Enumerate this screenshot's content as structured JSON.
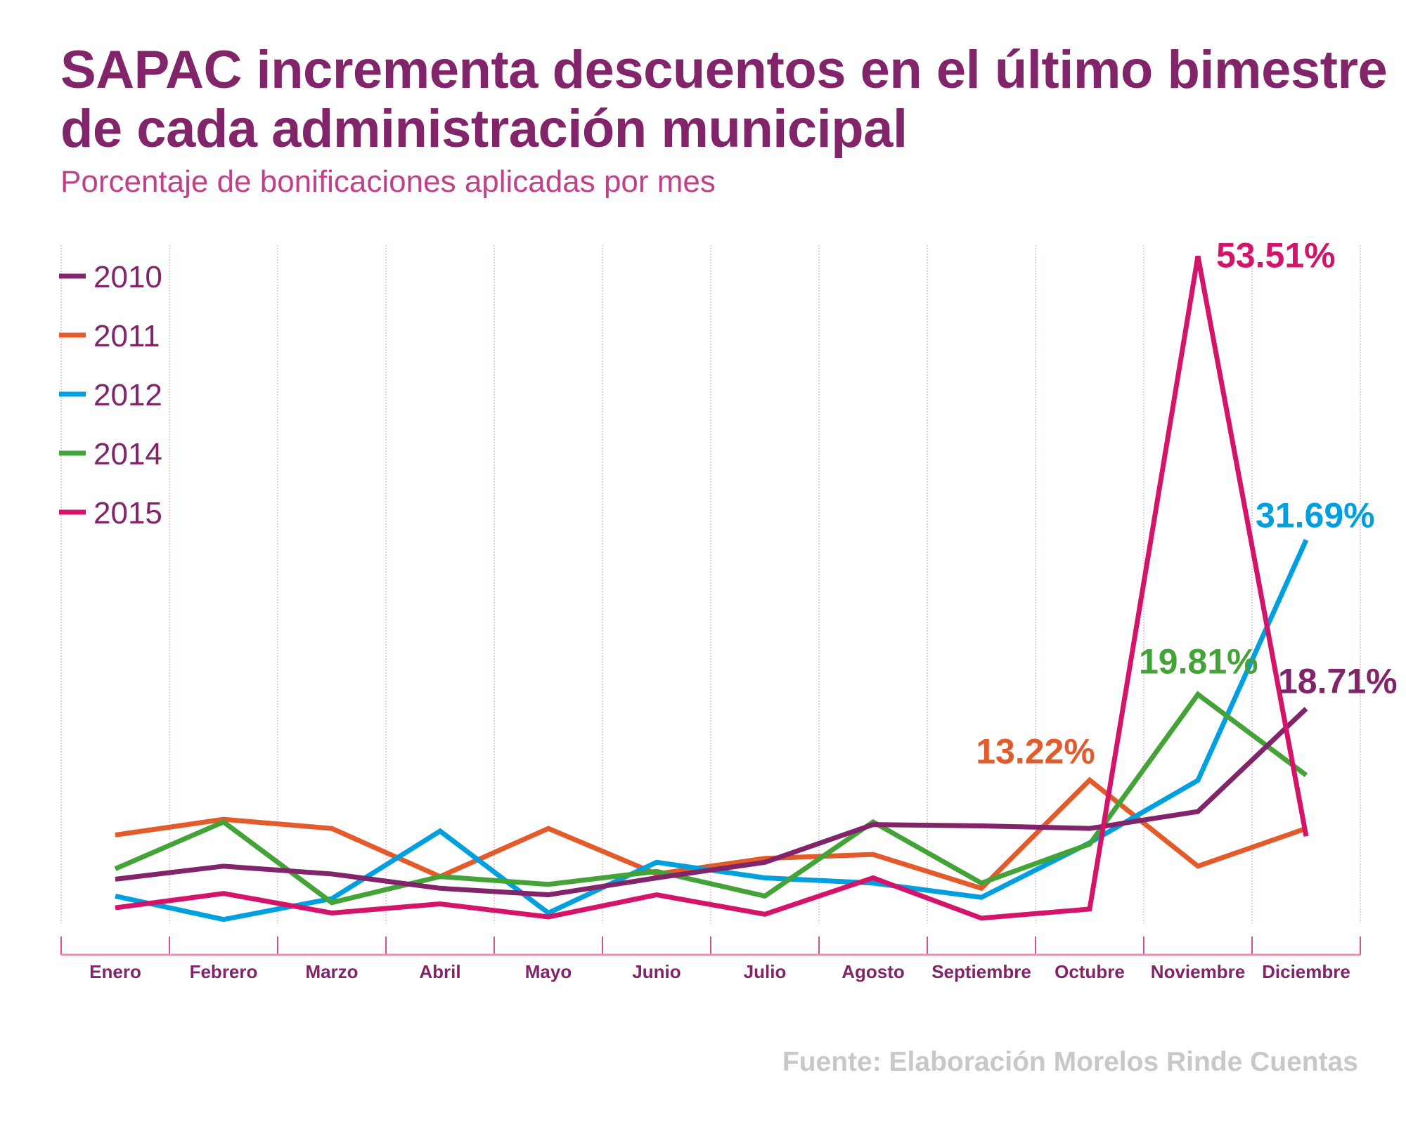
{
  "chart_data": {
    "type": "line",
    "title": "SAPAC incrementa descuentos en el último bimestre de cada administración municipal",
    "subtitle": "Porcentaje de bonificaciones aplicadas por mes",
    "source": "Fuente: Elaboración Morelos Rinde Cuentas",
    "categories": [
      "Enero",
      "Febrero",
      "Marzo",
      "Abril",
      "Mayo",
      "Junio",
      "Julio",
      "Agosto",
      "Septiembre",
      "Octubre",
      "Noviembre",
      "Diciembre"
    ],
    "ylim": [
      0,
      55
    ],
    "grid": "vertical",
    "legend": "top-left",
    "series": [
      {
        "name": "2010",
        "color": "#82246a",
        "values": [
          5.6,
          6.6,
          6.0,
          4.9,
          4.4,
          5.7,
          6.9,
          9.8,
          9.7,
          9.5,
          10.8,
          18.71
        ],
        "label": "18.71%",
        "label_index": 11
      },
      {
        "name": "2011",
        "color": "#e35b2b",
        "values": [
          9.0,
          10.2,
          9.5,
          5.8,
          9.5,
          6.0,
          7.2,
          7.5,
          4.9,
          13.22,
          6.6,
          9.5
        ],
        "label": "13.22%",
        "label_index": 9
      },
      {
        "name": "2012",
        "color": "#00a0e0",
        "values": [
          4.3,
          2.5,
          4.1,
          9.3,
          3.0,
          6.9,
          5.7,
          5.3,
          4.2,
          8.4,
          13.2,
          31.69
        ],
        "label": "31.69%",
        "label_index": 11
      },
      {
        "name": "2014",
        "color": "#43a336",
        "values": [
          6.4,
          10.0,
          3.8,
          5.8,
          5.2,
          6.2,
          4.3,
          10.0,
          5.3,
          8.3,
          19.81,
          13.6
        ],
        "label": "19.81%",
        "label_index": 10
      },
      {
        "name": "2015",
        "color": "#d4146a",
        "values": [
          3.4,
          4.5,
          3.0,
          3.7,
          2.7,
          4.4,
          2.9,
          5.7,
          2.6,
          3.3,
          53.51,
          8.9
        ],
        "label": "53.51%",
        "label_index": 10
      }
    ]
  }
}
